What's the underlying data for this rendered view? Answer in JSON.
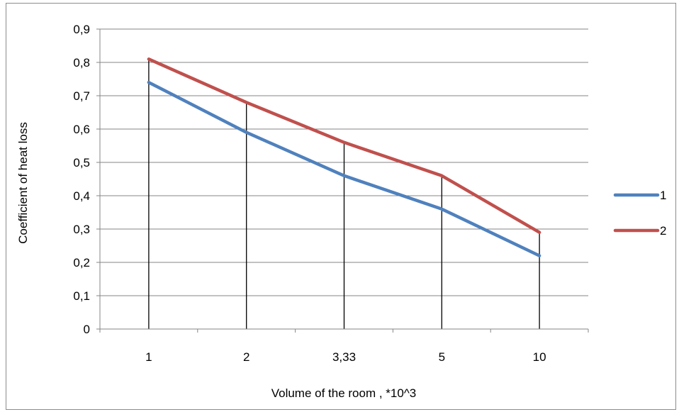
{
  "chart_data": {
    "type": "line",
    "title": "",
    "xlabel": "Volume of the room , *10^3",
    "ylabel": "Coefficient of heat loss",
    "categories": [
      "1",
      "2",
      "3,33",
      "5",
      "10"
    ],
    "y_ticks": [
      "0",
      "0,1",
      "0,2",
      "0,3",
      "0,4",
      "0,5",
      "0,6",
      "0,7",
      "0,8",
      "0,9"
    ],
    "ylim": [
      0,
      0.9
    ],
    "grid": "horizontal",
    "drop_lines": true,
    "legend_position": "right",
    "series": [
      {
        "name": "1",
        "color": "#4f81bd",
        "values": [
          0.74,
          0.59,
          0.46,
          0.36,
          0.22
        ]
      },
      {
        "name": "2",
        "color": "#c0504d",
        "values": [
          0.81,
          0.68,
          0.56,
          0.46,
          0.29
        ]
      }
    ]
  }
}
